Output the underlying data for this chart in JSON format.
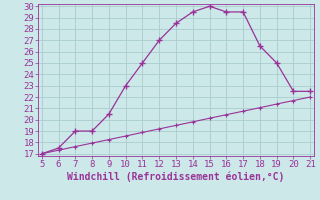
{
  "xlabel": "Windchill (Refroidissement éolien,°C)",
  "x_curve": [
    5,
    6,
    7,
    8,
    9,
    10,
    11,
    12,
    13,
    14,
    15,
    16,
    17,
    18,
    19,
    20,
    21
  ],
  "y_curve": [
    17,
    17.5,
    19,
    19,
    20.5,
    23,
    25,
    27,
    28.5,
    29.5,
    30,
    29.5,
    29.5,
    26.5,
    25,
    22.5,
    22.5
  ],
  "x_line": [
    5,
    6,
    7,
    8,
    9,
    10,
    11,
    12,
    13,
    14,
    15,
    16,
    17,
    18,
    19,
    20,
    21
  ],
  "y_line": [
    17.0,
    17.31,
    17.63,
    17.94,
    18.25,
    18.56,
    18.88,
    19.19,
    19.5,
    19.81,
    20.13,
    20.44,
    20.75,
    21.06,
    21.38,
    21.69,
    22.0
  ],
  "line_color": "#993399",
  "bg_color": "#cce8e8",
  "grid_color": "#aacccc",
  "xlim": [
    5,
    21
  ],
  "ylim": [
    17,
    30
  ],
  "xticks": [
    5,
    6,
    7,
    8,
    9,
    10,
    11,
    12,
    13,
    14,
    15,
    16,
    17,
    18,
    19,
    20,
    21
  ],
  "yticks": [
    17,
    18,
    19,
    20,
    21,
    22,
    23,
    24,
    25,
    26,
    27,
    28,
    29,
    30
  ],
  "tick_fontsize": 6.5,
  "xlabel_fontsize": 7.0
}
